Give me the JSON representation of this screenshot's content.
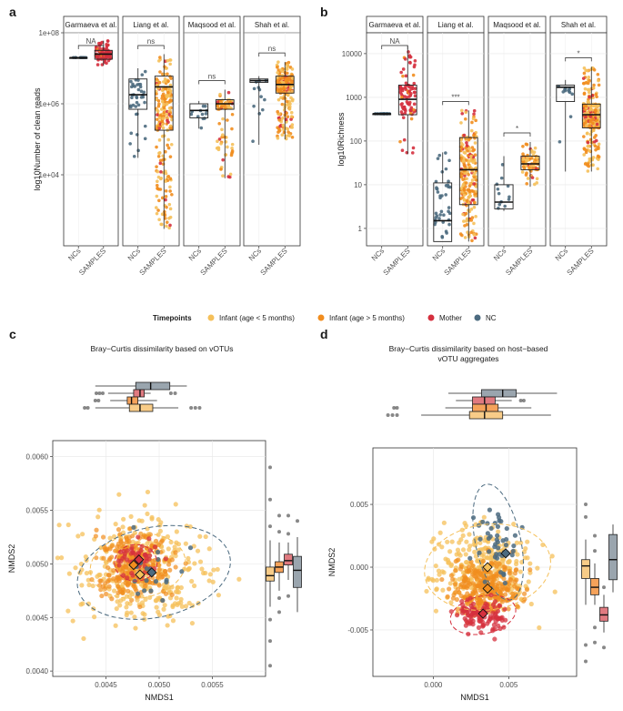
{
  "chart_data": [
    {
      "panel": "a",
      "type": "box+strip",
      "ylabel": "log10Number of clean reads",
      "yscale": "log10",
      "ylim": [
        100,
        100000000
      ],
      "yticks": [
        "1e+04",
        "1e+06",
        "1e+08"
      ],
      "categories": [
        "NCs",
        "SAMPLES"
      ],
      "facets": [
        {
          "name": "Garmaeva et al.",
          "signif": "NA",
          "groups": [
            {
              "cat": "NCs",
              "q1": 20000000.0,
              "med": 20000000.0,
              "q3": 20000000.0,
              "min": 20000000.0,
              "max": 20000000.0
            },
            {
              "cat": "SAMPLES",
              "q1": 18000000.0,
              "med": 25000000.0,
              "q3": 32000000.0,
              "min": 12000000.0,
              "max": 60000000.0
            }
          ]
        },
        {
          "name": "Liang et al.",
          "signif": "ns",
          "groups": [
            {
              "cat": "NCs",
              "q1": 700000.0,
              "med": 1800000.0,
              "q3": 5000000.0,
              "min": 30000.0,
              "max": 10000000.0
            },
            {
              "cat": "SAMPLES",
              "q1": 180000.0,
              "med": 3000000.0,
              "q3": 6000000.0,
              "min": 300,
              "max": 25000000.0
            }
          ]
        },
        {
          "name": "Maqsood et al.",
          "signif": "ns",
          "groups": [
            {
              "cat": "NCs",
              "q1": 400000.0,
              "med": 650000.0,
              "q3": 1000000.0,
              "min": 200000.0,
              "max": 1200000.0
            },
            {
              "cat": "SAMPLES",
              "q1": 700000.0,
              "med": 1000000.0,
              "q3": 1300000.0,
              "min": 8000.0,
              "max": 2500000.0
            }
          ]
        },
        {
          "name": "Shah et al.",
          "signif": "ns",
          "groups": [
            {
              "cat": "NCs",
              "q1": 4000000.0,
              "med": 4500000.0,
              "q3": 5000000.0,
              "min": 70000.0,
              "max": 6000000.0
            },
            {
              "cat": "SAMPLES",
              "q1": 2000000.0,
              "med": 3500000.0,
              "q3": 6000000.0,
              "min": 100000.0,
              "max": 15000000.0
            }
          ]
        }
      ]
    },
    {
      "panel": "b",
      "type": "box+strip",
      "ylabel": "log10Richness",
      "yscale": "log10",
      "ylim": [
        0.4,
        30000
      ],
      "yticks": [
        "1",
        "10",
        "100",
        "1000",
        "10000"
      ],
      "categories": [
        "NCs",
        "SAMPLES"
      ],
      "facets": [
        {
          "name": "Garmaeva et al.",
          "signif": "NA",
          "groups": [
            {
              "cat": "NCs",
              "q1": 420,
              "med": 420,
              "q3": 420,
              "min": 420,
              "max": 420
            },
            {
              "cat": "SAMPLES",
              "q1": 400,
              "med": 900,
              "q3": 1900,
              "min": 50,
              "max": 15000
            }
          ]
        },
        {
          "name": "Liang et al.",
          "signif": "***",
          "groups": [
            {
              "cat": "NCs",
              "q1": 0.5,
              "med": 1.5,
              "q3": 11,
              "min": 0.5,
              "max": 55
            },
            {
              "cat": "SAMPLES",
              "q1": 3.5,
              "med": 22,
              "q3": 120,
              "min": 0.5,
              "max": 500
            }
          ]
        },
        {
          "name": "Maqsood et al.",
          "signif": "*",
          "groups": [
            {
              "cat": "NCs",
              "q1": 2.8,
              "med": 4,
              "q3": 10,
              "min": 2.5,
              "max": 45
            },
            {
              "cat": "SAMPLES",
              "q1": 22,
              "med": 30,
              "q3": 45,
              "min": 9,
              "max": 95
            }
          ]
        },
        {
          "name": "Shah et al.",
          "signif": "*",
          "groups": [
            {
              "cat": "NCs",
              "q1": 800,
              "med": 1700,
              "q3": 1900,
              "min": 20,
              "max": 2500
            },
            {
              "cat": "SAMPLES",
              "q1": 200,
              "med": 400,
              "q3": 700,
              "min": 20,
              "max": 5000
            }
          ]
        }
      ]
    },
    {
      "panel": "c",
      "type": "scatter",
      "title": "Bray−Curtis dissimilarity based on vOTUs",
      "xlabel": "NMDS1",
      "ylabel": "NMDS2",
      "xlim": [
        0.004,
        0.006
      ],
      "ylim": [
        0.00395,
        0.00615
      ],
      "xticks": [
        "0.0045",
        "0.0050",
        "0.0055"
      ],
      "yticks": [
        "0.0040",
        "0.0045",
        "0.0050",
        "0.0055",
        "0.0060"
      ],
      "centroids": {
        "infant_lt5": [
          0.00482,
          0.0049
        ],
        "infant_gt5": [
          0.00476,
          0.00499
        ],
        "mother": [
          0.00481,
          0.00504
        ],
        "nc": [
          0.00493,
          0.00492
        ]
      }
    },
    {
      "panel": "d",
      "type": "scatter",
      "title": "Bray−Curtis dissimilarity based on host−based vOTU aggregates",
      "title_lines": [
        "Bray−Curtis dissimilarity based on host−based",
        "vOTU aggregates"
      ],
      "xlabel": "NMDS1",
      "ylabel": "NMDS2",
      "xlim": [
        -0.004,
        0.0095
      ],
      "ylim": [
        -0.0087,
        0.0095
      ],
      "xticks": [
        "0.000",
        "0.005"
      ],
      "yticks": [
        "-0.005",
        "0.000",
        "0.005"
      ],
      "centroids": {
        "infant_lt5": [
          0.0036,
          0.0
        ],
        "infant_gt5": [
          0.0036,
          -0.0017
        ],
        "mother": [
          0.0033,
          -0.0037
        ],
        "nc": [
          0.0048,
          0.0011
        ]
      }
    }
  ],
  "legend": {
    "title": "Timepoints",
    "items": [
      {
        "label": "Infant (age < 5 months)",
        "color": "#F5C05A"
      },
      {
        "label": "Infant (age > 5 months)",
        "color": "#F18D1E"
      },
      {
        "label": "Mother",
        "color": "#D5303E"
      },
      {
        "label": "NC",
        "color": "#4C6B80"
      }
    ]
  },
  "labels": {
    "a": "a",
    "b": "b",
    "c": "c",
    "d": "d"
  },
  "colors": {
    "infant_lt5": "#F5C05A",
    "infant_gt5": "#F18D1E",
    "mother": "#D5303E",
    "nc": "#4C6B80",
    "panel_border": "#333333",
    "strip_fill": "#ffffff"
  }
}
